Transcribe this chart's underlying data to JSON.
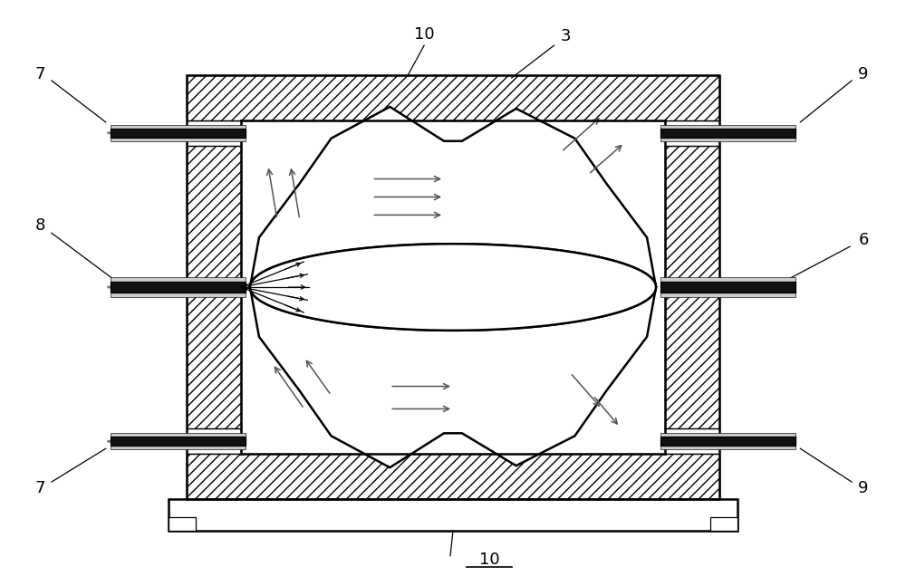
{
  "fig_width": 10.0,
  "fig_height": 6.47,
  "dpi": 100,
  "bg_color": "#ffffff",
  "lc": "#000000",
  "gray_arrow": "#888888",
  "dark_arrow": "#555555",
  "pipe_color": "#111111",
  "lw_main": 1.8,
  "lw_thin": 0.9,
  "lw_arrow": 1.2,
  "hatch_density": "///",
  "font_size": 13
}
